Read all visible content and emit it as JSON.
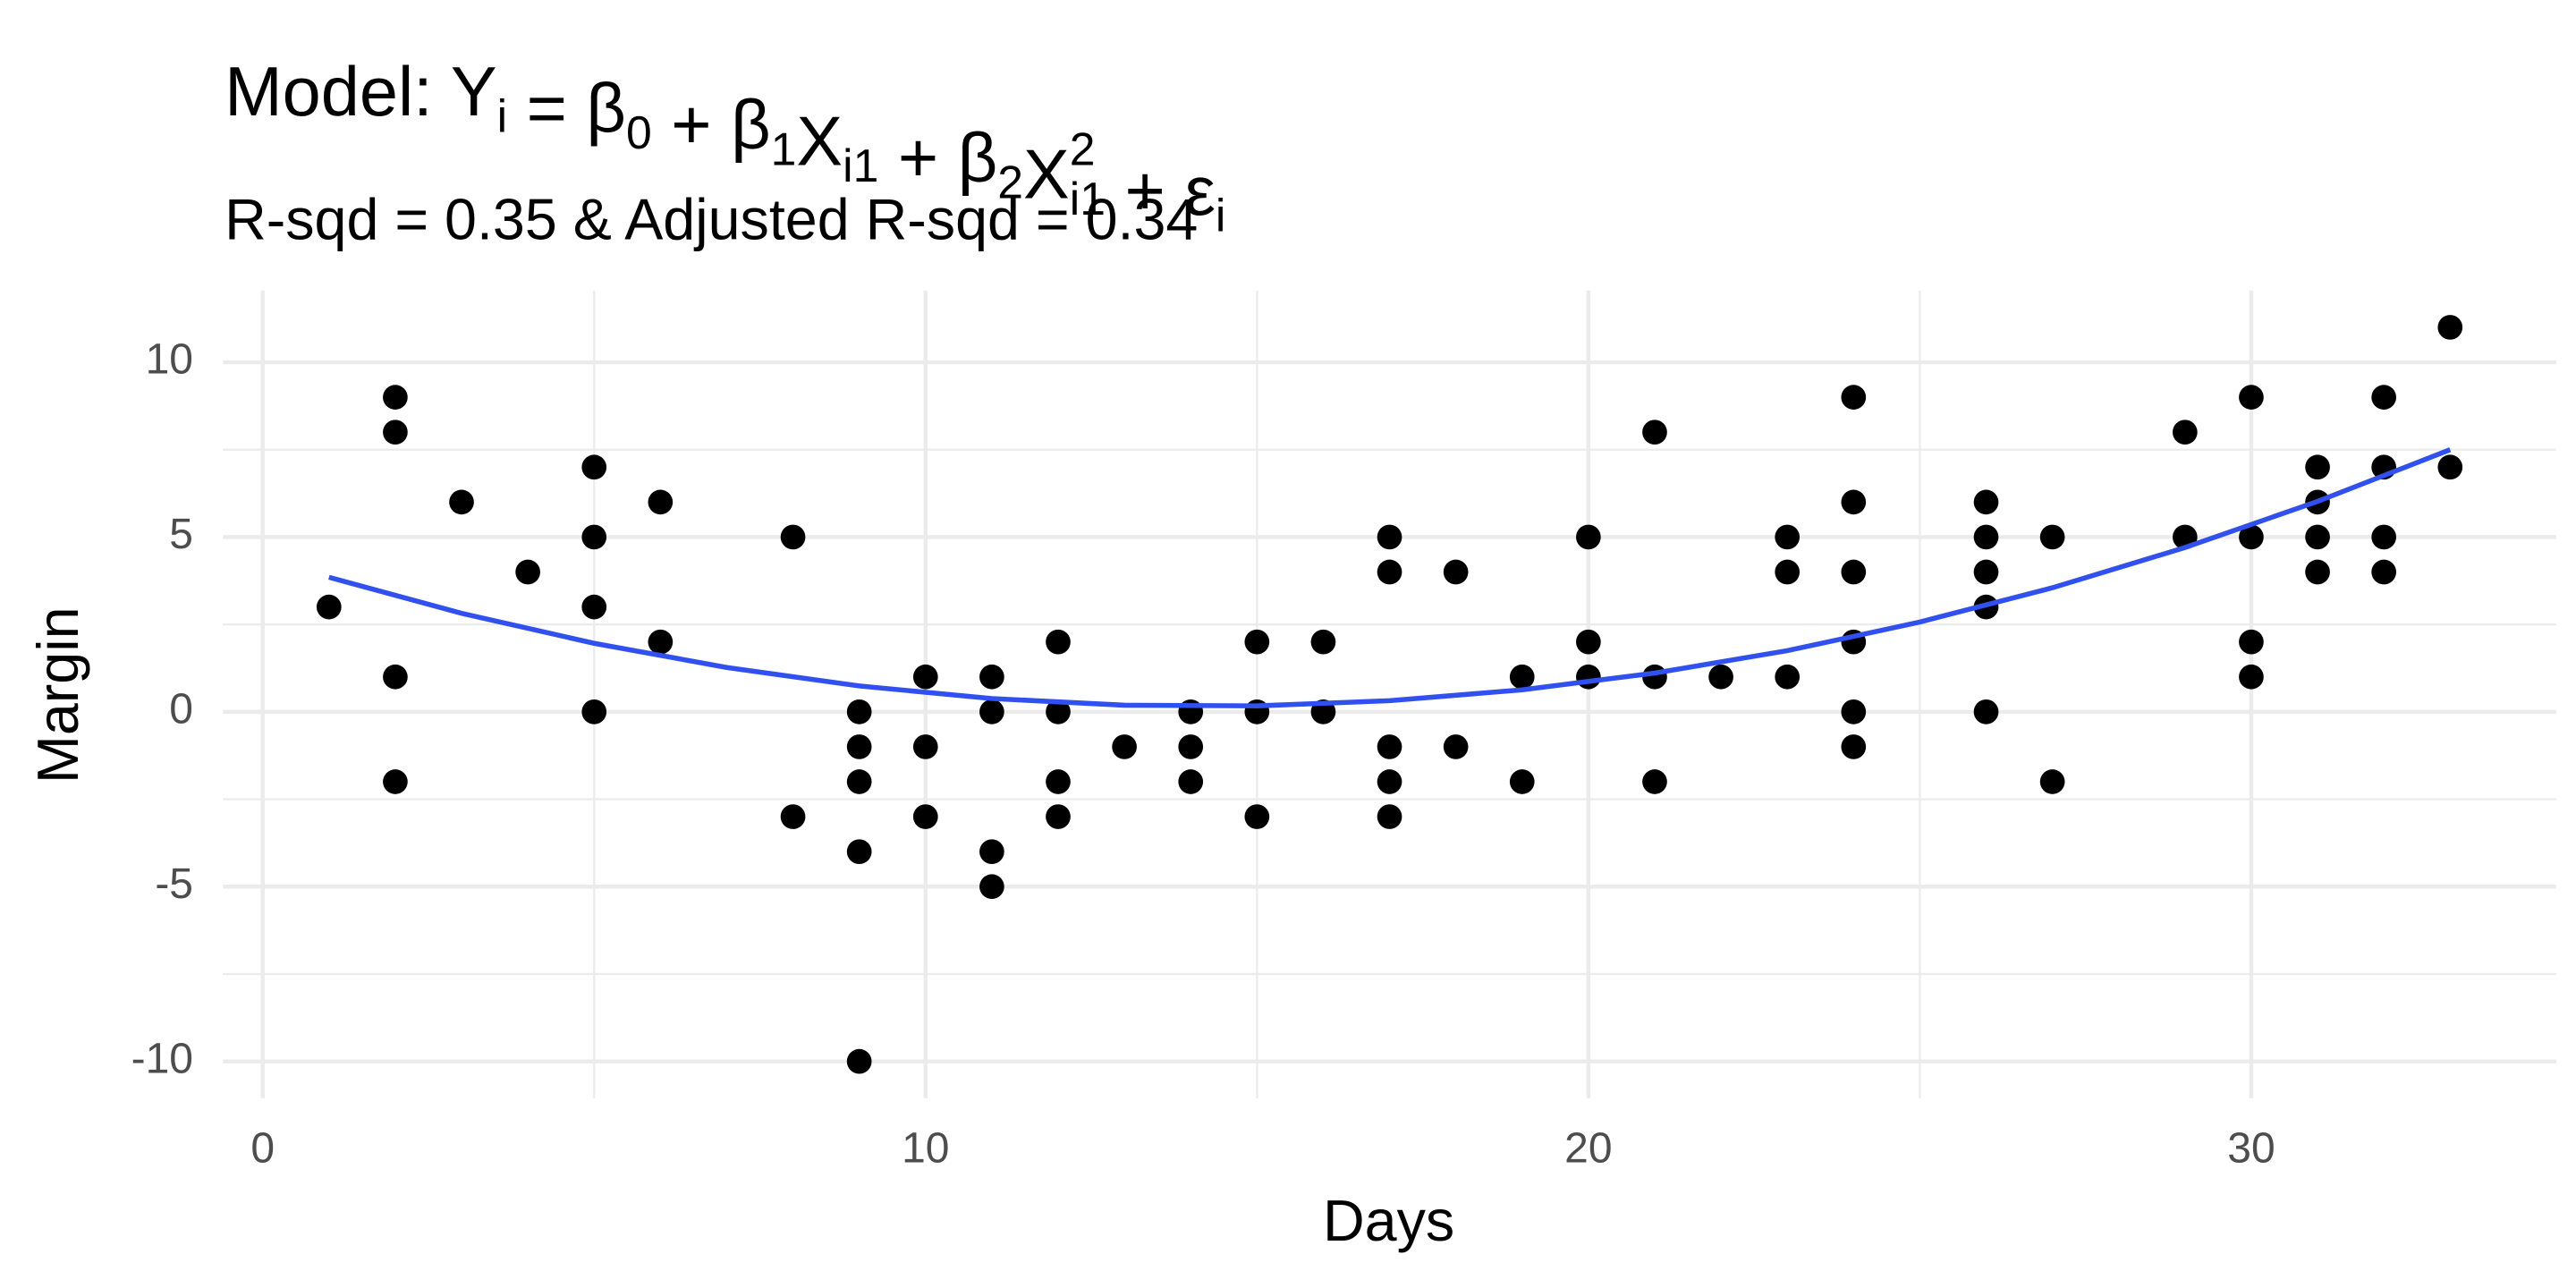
{
  "chart_data": {
    "type": "scatter",
    "title": [
      "Model: Y",
      {
        "sub": "i"
      },
      " = β",
      {
        "sub": "0"
      },
      " + β",
      {
        "sub": "1"
      },
      "X",
      {
        "sub": "i1"
      },
      " + β",
      {
        "sub": "2"
      },
      "X",
      {
        "sup": "2",
        "sub": "i1"
      },
      " + ε",
      {
        "sub": "i"
      }
    ],
    "subtitle": "R-sqd = 0.35 & Adjusted R-sqd = 0.34",
    "x_label": "Days",
    "y_label": "Margin",
    "xlim": [
      -0.6,
      34.6
    ],
    "ylim": [
      -11.05,
      12.05
    ],
    "xticks": [
      0,
      10,
      20,
      30
    ],
    "yticks": [
      -10,
      -5,
      0,
      5,
      10
    ],
    "x_minor_ticks": [
      5,
      15,
      25
    ],
    "y_minor_ticks": [
      -7.5,
      -2.5,
      2.5,
      7.5
    ],
    "grid": true,
    "series": [
      {
        "type": "scatter",
        "color": "#000000",
        "x": [
          1,
          2,
          2,
          2,
          2,
          3,
          4,
          5,
          5,
          5,
          5,
          6,
          6,
          8,
          8,
          9,
          9,
          9,
          9,
          9,
          10,
          10,
          10,
          11,
          11,
          11,
          11,
          12,
          12,
          12,
          12,
          13,
          14,
          14,
          14,
          15,
          15,
          15,
          16,
          16,
          17,
          17,
          17,
          17,
          17,
          18,
          18,
          19,
          19,
          20,
          20,
          20,
          21,
          21,
          21,
          22,
          23,
          23,
          23,
          24,
          24,
          24,
          24,
          24,
          24,
          26,
          26,
          26,
          26,
          26,
          27,
          27,
          29,
          29,
          30,
          30,
          30,
          30,
          31,
          31,
          31,
          31,
          32,
          32,
          32,
          32,
          33,
          33
        ],
        "values": [
          3,
          9,
          8,
          1,
          -2,
          6,
          4,
          7,
          5,
          3,
          0,
          6,
          2,
          5,
          -3,
          0,
          -1,
          -2,
          -4,
          -10,
          1,
          -1,
          -3,
          1,
          0,
          -4,
          -5,
          2,
          0,
          -2,
          -3,
          -1,
          0,
          -1,
          -2,
          2,
          0,
          -3,
          2,
          0,
          5,
          4,
          -1,
          -2,
          -3,
          4,
          -1,
          1,
          -2,
          5,
          2,
          1,
          8,
          1,
          -2,
          1,
          5,
          4,
          1,
          9,
          6,
          4,
          2,
          0,
          -1,
          6,
          5,
          4,
          3,
          0,
          5,
          -2,
          8,
          5,
          9,
          5,
          2,
          1,
          7,
          6,
          5,
          4,
          9,
          7,
          5,
          4,
          11,
          7
        ]
      },
      {
        "type": "line",
        "color": "#3050F0",
        "x": [
          1,
          3,
          5,
          7,
          9,
          11,
          13,
          15,
          17,
          19,
          21,
          23,
          25,
          27,
          29,
          31,
          33
        ],
        "values": [
          3.85,
          2.82,
          1.96,
          1.27,
          0.74,
          0.38,
          0.19,
          0.17,
          0.32,
          0.63,
          1.11,
          1.75,
          2.57,
          3.55,
          4.7,
          6.02,
          7.5
        ]
      }
    ]
  }
}
